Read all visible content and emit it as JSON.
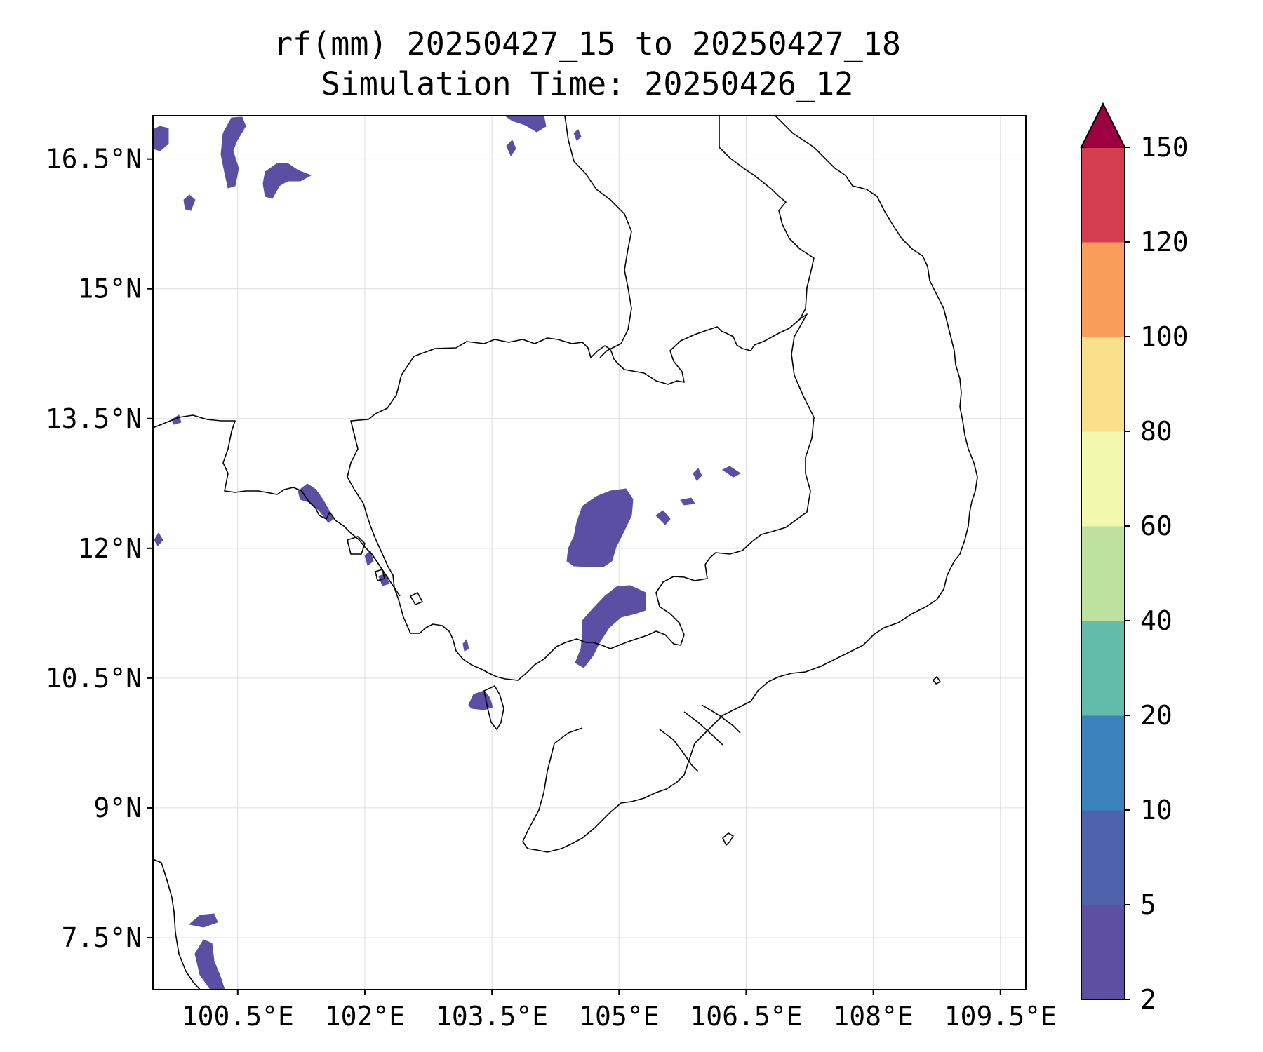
{
  "title": {
    "line1": "rf(mm) 20250427_15 to 20250427_18",
    "line2": "Simulation Time: 20250426_12"
  },
  "map": {
    "lon_range": [
      99.5,
      109.8
    ],
    "lat_range": [
      6.9,
      17.0
    ],
    "lat_ticks": [
      {
        "value": 16.5,
        "label": "16.5°N"
      },
      {
        "value": 15.0,
        "label": "15°N"
      },
      {
        "value": 13.5,
        "label": "13.5°N"
      },
      {
        "value": 12.0,
        "label": "12°N"
      },
      {
        "value": 10.5,
        "label": "10.5°N"
      },
      {
        "value": 9.0,
        "label": "9°N"
      },
      {
        "value": 7.5,
        "label": "7.5°N"
      }
    ],
    "lon_ticks": [
      {
        "value": 100.5,
        "label": "100.5°E"
      },
      {
        "value": 102.0,
        "label": "102°E"
      },
      {
        "value": 103.5,
        "label": "103.5°E"
      },
      {
        "value": 105.0,
        "label": "105°E"
      },
      {
        "value": 106.5,
        "label": "106.5°E"
      },
      {
        "value": 108.0,
        "label": "108°E"
      },
      {
        "value": 109.5,
        "label": "109.5°E"
      }
    ],
    "grid": true,
    "rain_color": "#5b4fa3"
  },
  "colorbar": {
    "levels": [
      "2",
      "5",
      "10",
      "20",
      "40",
      "60",
      "80",
      "100",
      "120",
      "150"
    ],
    "colors": [
      "#5e4fa2",
      "#4f63ad",
      "#3a82bb",
      "#63bba9",
      "#bde2a0",
      "#f2f8ad",
      "#fbe08c",
      "#f99d5a",
      "#d53e4f"
    ],
    "extend_color": "#9e0142",
    "extend": "max"
  }
}
